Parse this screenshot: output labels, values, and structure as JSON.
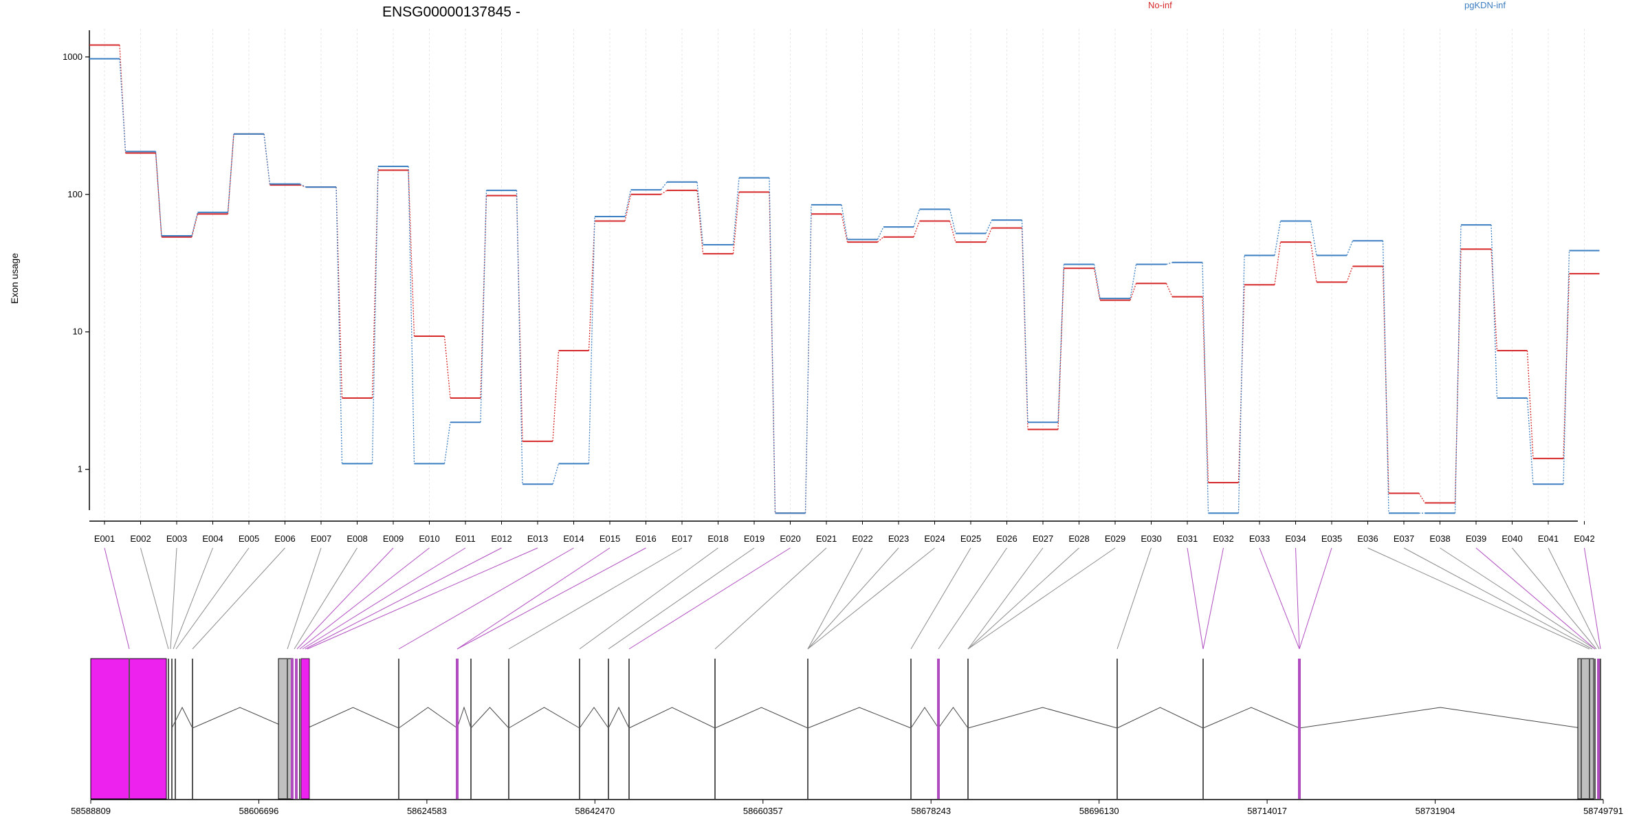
{
  "title": "ENSG00000137845 -",
  "chart_data": {
    "type": "line",
    "title": "ENSG00000137845 -",
    "ylabel": "Exon usage",
    "xlabel": "",
    "yscale": "log",
    "ylim": [
      0.42,
      1600
    ],
    "y_ticks": [
      1,
      10,
      100,
      1000
    ],
    "y_tick_labels": [
      "1",
      "10",
      "100",
      "1000"
    ],
    "grid": "vertical dashed lines at each exon",
    "legend_placement": "top",
    "categories": [
      "E001",
      "E002",
      "E003",
      "E004",
      "E005",
      "E006",
      "E007",
      "E008",
      "E009",
      "E010",
      "E011",
      "E012",
      "E013",
      "E014",
      "E015",
      "E016",
      "E017",
      "E018",
      "E019",
      "E020",
      "E021",
      "E022",
      "E023",
      "E024",
      "E025",
      "E026",
      "E027",
      "E028",
      "E029",
      "E030",
      "E031",
      "E032",
      "E033",
      "E034",
      "E035",
      "E036",
      "E037",
      "E038",
      "E039",
      "E040",
      "E041",
      "E042"
    ],
    "series": [
      {
        "name": "No-inf",
        "color": "#d62728",
        "values": [
          1220,
          200,
          49,
          72,
          275,
          117,
          113,
          3.3,
          150,
          9.3,
          3.3,
          98,
          1.6,
          7.3,
          64,
          100,
          107,
          37,
          104,
          0.48,
          72,
          45,
          49,
          64,
          45,
          57,
          1.95,
          29,
          17,
          22.5,
          18,
          0.8,
          22,
          45,
          23,
          30,
          0.67,
          0.57,
          40,
          7.3,
          1.2,
          26.5
        ]
      },
      {
        "name": "pgKDN-inf",
        "color": "#3a7dc0",
        "values": [
          970,
          205,
          50,
          74,
          275,
          119,
          113,
          1.1,
          160,
          1.1,
          2.2,
          107,
          0.78,
          1.1,
          69,
          108,
          123,
          43,
          132,
          0.48,
          84,
          47,
          58,
          78,
          52,
          65,
          2.2,
          31,
          17.5,
          31,
          32,
          0.48,
          36,
          64,
          36,
          46,
          0.48,
          0.48,
          60,
          3.3,
          0.78,
          39
        ]
      }
    ]
  },
  "genomic_axis": {
    "tick_labels": [
      "58588809",
      "58606696",
      "58624583",
      "58642470",
      "58660357",
      "58678243",
      "58696130",
      "58714017",
      "58731904",
      "58749791"
    ]
  },
  "colors": {
    "no_inf": "#d62728",
    "pgkdn_inf": "#3a7dc0",
    "exon_highlight": "#ee22ee",
    "exon_highlight_line": "#b04cc0",
    "exon_gray": "#c0c0c0",
    "connector_gray": "#8a8a8a"
  }
}
